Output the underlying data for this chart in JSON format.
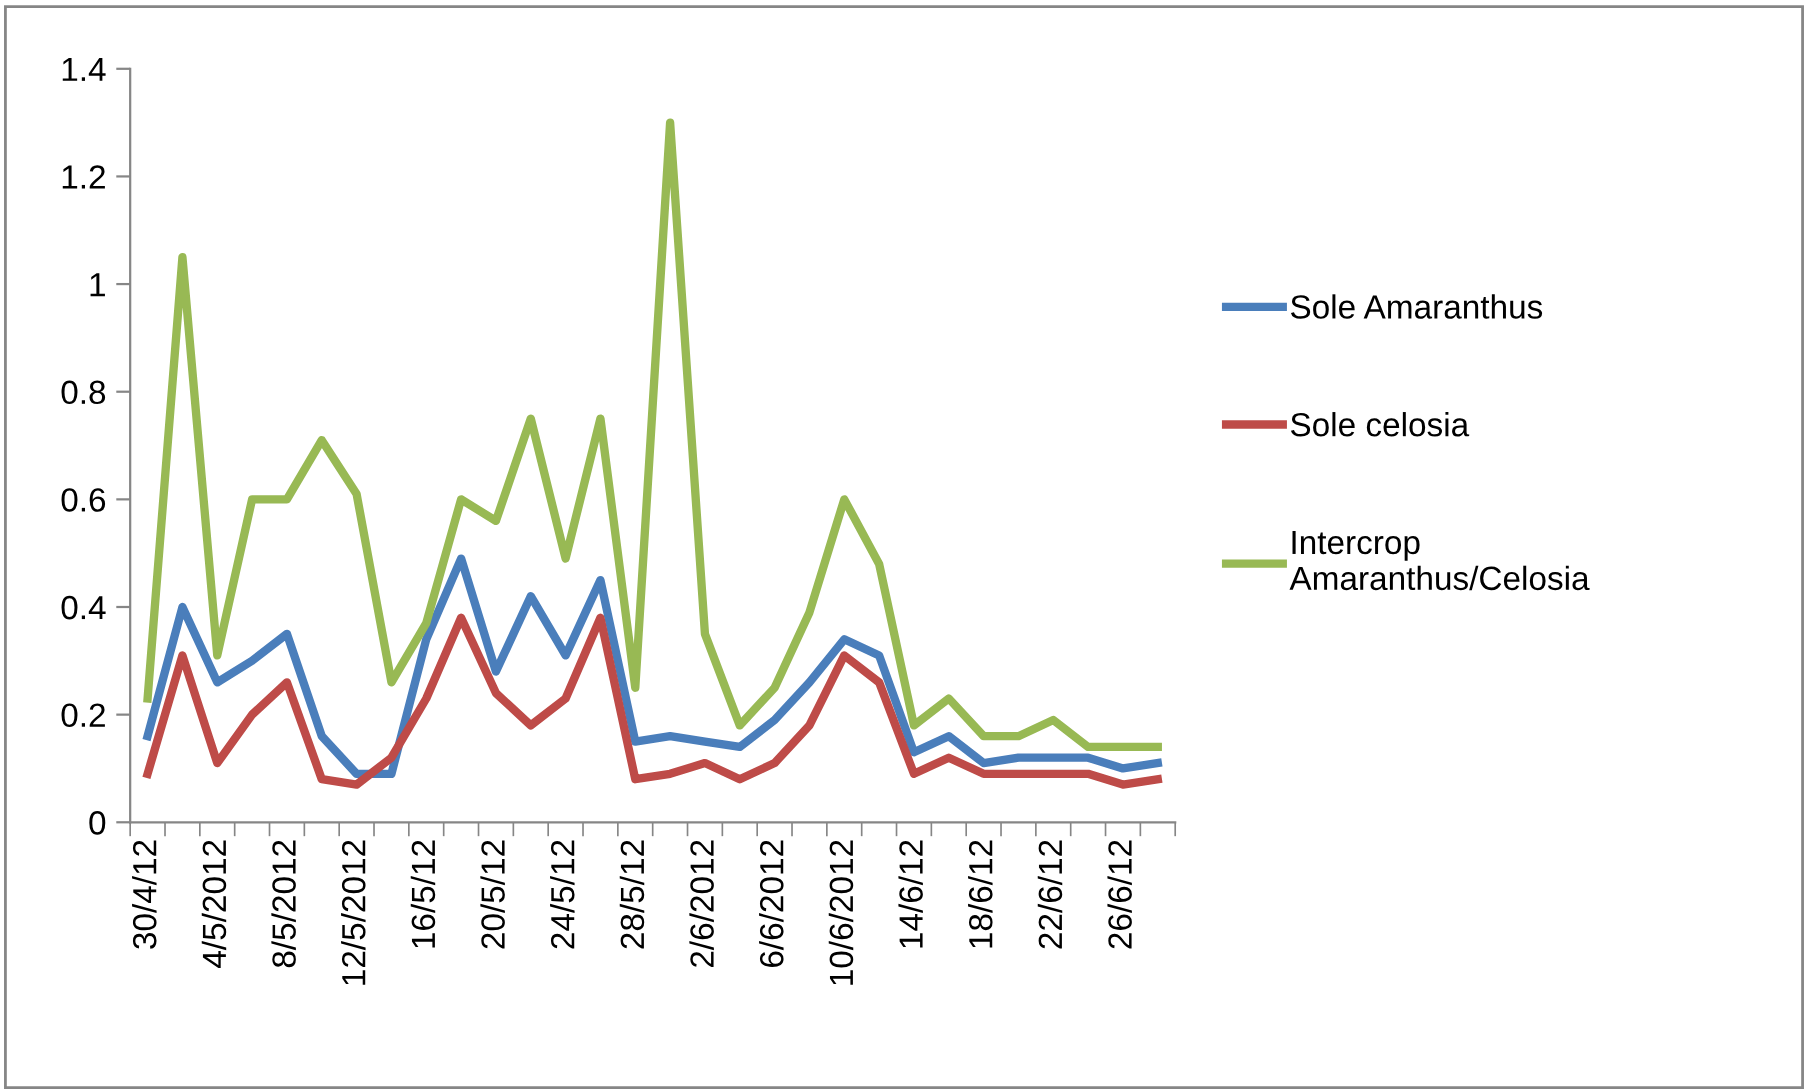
{
  "chart_data": {
    "type": "line",
    "categories": [
      "30/4/12",
      null,
      "4/5/2012",
      null,
      "8/5/2012",
      null,
      "12/5/2012",
      null,
      "16/5/12",
      null,
      "20/5/12",
      null,
      "24/5/12",
      null,
      "28/5/12",
      null,
      "2/6/2012",
      null,
      "6/6/2012",
      null,
      "10/6/2012",
      null,
      "14/6/12",
      null,
      "18/6/12",
      null,
      "22/6/12",
      null,
      "26/6/12",
      null
    ],
    "series": [
      {
        "name": "Sole Amaranthus",
        "color": "#4a7ebb",
        "values": [
          0.16,
          0.4,
          0.26,
          0.3,
          0.35,
          0.16,
          0.09,
          0.09,
          0.34,
          0.49,
          0.28,
          0.42,
          0.31,
          0.45,
          0.15,
          0.16,
          0.15,
          0.14,
          0.19,
          0.26,
          0.34,
          0.31,
          0.13,
          0.16,
          0.11,
          0.12,
          0.12,
          0.12,
          0.1,
          0.11
        ]
      },
      {
        "name": "Sole celosia",
        "color": "#be4b48",
        "values": [
          0.09,
          0.31,
          0.11,
          0.2,
          0.26,
          0.08,
          0.07,
          0.12,
          0.23,
          0.38,
          0.24,
          0.18,
          0.23,
          0.38,
          0.08,
          0.09,
          0.11,
          0.08,
          0.11,
          0.18,
          0.31,
          0.26,
          0.09,
          0.12,
          0.09,
          0.09,
          0.09,
          0.09,
          0.07,
          0.08
        ]
      },
      {
        "name": "Intercrop Amaranthus/Celosia",
        "color": "#98b954",
        "values": [
          0.23,
          1.05,
          0.31,
          0.6,
          0.6,
          0.71,
          0.61,
          0.26,
          0.37,
          0.6,
          0.56,
          0.75,
          0.49,
          0.75,
          0.25,
          1.3,
          0.35,
          0.18,
          0.25,
          0.39,
          0.6,
          0.48,
          0.18,
          0.23,
          0.16,
          0.16,
          0.19,
          0.14,
          0.14,
          0.14
        ]
      }
    ],
    "ylim": [
      0,
      1.4
    ],
    "yticks": [
      0,
      0.2,
      0.4,
      0.6,
      0.8,
      1,
      1.2,
      1.4
    ],
    "legend": "right",
    "marker": "none",
    "line_style": "solid"
  }
}
